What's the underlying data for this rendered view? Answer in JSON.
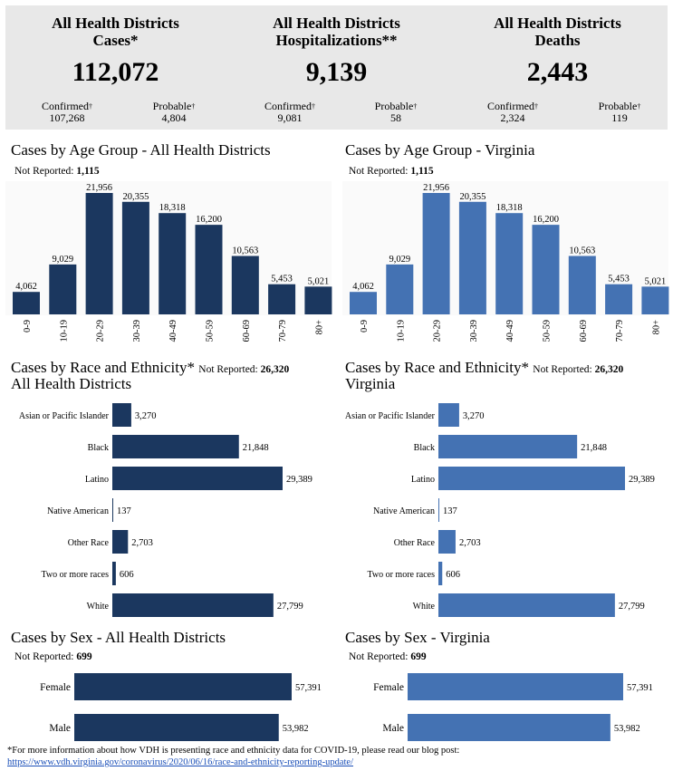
{
  "colors": {
    "dark": "#1b375f",
    "light": "#4472b3",
    "summary_bg": "#e8e8e8"
  },
  "summary": {
    "cases": {
      "title1": "All Health Districts",
      "title2": "Cases*",
      "total": "112,072",
      "confirmed_label": "Confirmed",
      "confirmed": "107,268",
      "probable_label": "Probable",
      "probable": "4,804"
    },
    "hospitalizations": {
      "title1": "All Health Districts",
      "title2": "Hospitalizations**",
      "total": "9,139",
      "confirmed_label": "Confirmed",
      "confirmed": "9,081",
      "probable_label": "Probable",
      "probable": "58"
    },
    "deaths": {
      "title1": "All Health Districts",
      "title2": "Deaths",
      "total": "2,443",
      "confirmed_label": "Confirmed",
      "confirmed": "2,324",
      "probable_label": "Probable",
      "probable": "119"
    }
  },
  "dagger": "†",
  "age_left": {
    "title": "Cases by Age Group - All Health Districts",
    "not_reported_label": "Not Reported:",
    "not_reported": "1,115"
  },
  "age_right": {
    "title": "Cases by Age Group - Virginia",
    "not_reported_label": "Not Reported:",
    "not_reported": "1,115"
  },
  "race_left": {
    "title": "Cases by Race and Ethnicity*",
    "subtitle": "All Health Districts",
    "not_reported_label": "Not Reported:",
    "not_reported": "26,320"
  },
  "race_right": {
    "title": "Cases by Race and Ethnicity*",
    "subtitle": "Virginia",
    "not_reported_label": "Not Reported:",
    "not_reported": "26,320"
  },
  "sex_left": {
    "title": "Cases by Sex - All Health Districts",
    "not_reported_label": "Not Reported:",
    "not_reported": "699"
  },
  "sex_right": {
    "title": "Cases by Sex - Virginia",
    "not_reported_label": "Not Reported:",
    "not_reported": "699"
  },
  "footnote": {
    "text": "*For more information about how VDH is presenting race and ethnicity data for COVID-19, please read our blog post:",
    "link": "https://www.vdh.virginia.gov/coronavirus/2020/06/16/race-and-ethnicity-reporting-update/"
  },
  "chart_data": [
    {
      "id": "age_left",
      "type": "bar",
      "title": "Cases by Age Group - All Health Districts",
      "categories": [
        "0-9",
        "10-19",
        "20-29",
        "30-39",
        "40-49",
        "50-59",
        "60-69",
        "70-79",
        "80+"
      ],
      "values": [
        4062,
        9029,
        21956,
        20355,
        18318,
        16200,
        10563,
        5453,
        5021
      ],
      "labels": [
        "4,062",
        "9,029",
        "21,956",
        "20,355",
        "18,318",
        "16,200",
        "10,563",
        "5,453",
        "5,021"
      ],
      "ylim": [
        0,
        21956
      ]
    },
    {
      "id": "age_right",
      "type": "bar",
      "title": "Cases by Age Group - Virginia",
      "categories": [
        "0-9",
        "10-19",
        "20-29",
        "30-39",
        "40-49",
        "50-59",
        "60-69",
        "70-79",
        "80+"
      ],
      "values": [
        4062,
        9029,
        21956,
        20355,
        18318,
        16200,
        10563,
        5453,
        5021
      ],
      "labels": [
        "4,062",
        "9,029",
        "21,956",
        "20,355",
        "18,318",
        "16,200",
        "10,563",
        "5,453",
        "5,021"
      ],
      "ylim": [
        0,
        21956
      ]
    },
    {
      "id": "race_left",
      "type": "bar",
      "orientation": "horizontal",
      "title": "Cases by Race and Ethnicity* All Health Districts",
      "categories": [
        "Asian or Pacific Islander",
        "Black",
        "Latino",
        "Native American",
        "Other Race",
        "Two or more races",
        "White"
      ],
      "values": [
        3270,
        21848,
        29389,
        137,
        2703,
        606,
        27799
      ],
      "labels": [
        "3,270",
        "21,848",
        "29,389",
        "137",
        "2,703",
        "606",
        "27,799"
      ],
      "xlim": [
        0,
        29389
      ]
    },
    {
      "id": "race_right",
      "type": "bar",
      "orientation": "horizontal",
      "title": "Cases by Race and Ethnicity* Virginia",
      "categories": [
        "Asian or Pacific Islander",
        "Black",
        "Latino",
        "Native American",
        "Other Race",
        "Two or more races",
        "White"
      ],
      "values": [
        3270,
        21848,
        29389,
        137,
        2703,
        606,
        27799
      ],
      "labels": [
        "3,270",
        "21,848",
        "29,389",
        "137",
        "2,703",
        "606",
        "27,799"
      ],
      "xlim": [
        0,
        29389
      ]
    },
    {
      "id": "sex_left",
      "type": "bar",
      "orientation": "horizontal",
      "title": "Cases by Sex - All Health Districts",
      "categories": [
        "Female",
        "Male"
      ],
      "values": [
        57391,
        53982
      ],
      "labels": [
        "57,391",
        "53,982"
      ],
      "xlim": [
        0,
        57391
      ]
    },
    {
      "id": "sex_right",
      "type": "bar",
      "orientation": "horizontal",
      "title": "Cases by Sex - Virginia",
      "categories": [
        "Female",
        "Male"
      ],
      "values": [
        57391,
        53982
      ],
      "labels": [
        "57,391",
        "53,982"
      ],
      "xlim": [
        0,
        57391
      ]
    }
  ]
}
